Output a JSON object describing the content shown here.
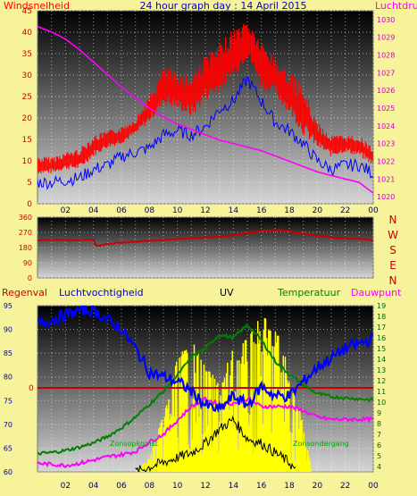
{
  "header": {
    "left_label": "Windsnelheid",
    "title": "24 hour graph day : 14 April 2015",
    "right_label": "Luchtdruk"
  },
  "colors": {
    "background": "#f6f39a",
    "wind": "#ff0000",
    "gust_avg": "#0000ff",
    "pressure": "#ff00ff",
    "direction": "#cc0000",
    "humidity": "#0000ff",
    "temperature": "#008000",
    "dewpoint": "#ff00ff",
    "uv": "#ffff00",
    "solar": "#000000",
    "rain_line": "#cc0000"
  },
  "chart_data": [
    {
      "type": "line",
      "title": "24 hour graph day : 14 April 2015",
      "xlabel": "",
      "ylabel_left": "Windsnelheid",
      "ylabel_right": "Luchtdruk",
      "x_ticks": [
        "02",
        "04",
        "06",
        "08",
        "10",
        "12",
        "14",
        "16",
        "18",
        "20",
        "22",
        "00"
      ],
      "y_ticks_left": [
        0,
        5,
        10,
        15,
        20,
        25,
        30,
        35,
        40,
        45
      ],
      "y_ticks_right": [
        1020,
        1021,
        1022,
        1023,
        1024,
        1025,
        1026,
        1027,
        1028,
        1029,
        1030
      ],
      "ylim_left": [
        0,
        45
      ],
      "ylim_right": [
        1019.6,
        1030.5
      ],
      "series": [
        {
          "axis": "left",
          "style": "band",
          "hours": [
            0,
            1,
            2,
            3,
            4,
            5,
            6,
            7,
            8,
            9,
            10,
            11,
            12,
            13,
            14,
            15,
            16,
            17,
            18,
            19,
            20,
            21,
            22,
            23,
            24
          ],
          "low": [
            7,
            7,
            8,
            8,
            11,
            13,
            14,
            16,
            19,
            23,
            22,
            20,
            24,
            26,
            29,
            34,
            27,
            25,
            21,
            16,
            13,
            11,
            12,
            11,
            9
          ],
          "high": [
            11,
            11,
            12,
            13,
            16,
            17,
            18,
            20,
            25,
            32,
            31,
            30,
            35,
            37,
            41,
            43,
            38,
            34,
            31,
            27,
            19,
            16,
            16,
            16,
            13
          ]
        },
        {
          "axis": "left",
          "hours": [
            0,
            1,
            2,
            3,
            4,
            5,
            6,
            7,
            8,
            9,
            10,
            11,
            12,
            13,
            14,
            15,
            16,
            17,
            18,
            19,
            20,
            21,
            22,
            23,
            24
          ],
          "values": [
            5,
            5,
            5.5,
            6,
            8,
            9,
            11,
            12,
            13,
            16,
            17,
            16,
            18,
            22,
            24,
            29,
            24,
            19,
            17,
            14,
            10,
            8,
            9,
            9,
            7
          ]
        },
        {
          "axis": "right",
          "hours": [
            0,
            1,
            2,
            3,
            4,
            5,
            6,
            7,
            8,
            9,
            10,
            11,
            12,
            13,
            14,
            15,
            16,
            17,
            18,
            19,
            20,
            21,
            22,
            23,
            24
          ],
          "values": [
            1029.6,
            1029.3,
            1028.9,
            1028.3,
            1027.6,
            1026.9,
            1026.2,
            1025.6,
            1025.0,
            1024.5,
            1024.1,
            1023.8,
            1023.5,
            1023.2,
            1023.0,
            1022.8,
            1022.6,
            1022.3,
            1022.0,
            1021.7,
            1021.4,
            1021.2,
            1021.0,
            1020.8,
            1020.2
          ]
        }
      ]
    },
    {
      "type": "line",
      "title": "",
      "y_ticks": [
        0,
        90,
        180,
        270,
        360
      ],
      "ylim": [
        0,
        360
      ],
      "compass_labels": [
        "N",
        "W",
        "S",
        "E",
        "N"
      ],
      "series": [
        {
          "hours": [
            0,
            1,
            2,
            3,
            4,
            4.2,
            5,
            6,
            7,
            8,
            9,
            10,
            11,
            12,
            13,
            14,
            15,
            16,
            17,
            18,
            19,
            20,
            21,
            22,
            23,
            24
          ],
          "values": [
            225,
            225,
            225,
            225,
            225,
            190,
            200,
            210,
            215,
            220,
            225,
            230,
            235,
            240,
            245,
            255,
            265,
            278,
            285,
            275,
            262,
            250,
            240,
            235,
            230,
            225
          ]
        }
      ]
    },
    {
      "type": "line",
      "title": "UV",
      "legend": [
        "Regenval",
        "Luchtvochtigheid",
        "UV",
        "Temperatuur",
        "Dauwpunt"
      ],
      "x_ticks": [
        "02",
        "04",
        "06",
        "08",
        "10",
        "12",
        "14",
        "16",
        "18",
        "20",
        "22",
        "00"
      ],
      "y_ticks_left": [
        60,
        65,
        70,
        75,
        80,
        85,
        90,
        95
      ],
      "ylim_left": [
        60,
        95
      ],
      "y_ticks_right": [
        4,
        5,
        6,
        7,
        8,
        9,
        10,
        11,
        12,
        13,
        14,
        15,
        16,
        17,
        18,
        19
      ],
      "ylim_right": [
        3.5,
        19
      ],
      "rain_label": "0",
      "annotations": [
        "Zonsopkomst",
        "Zonsondergang"
      ],
      "series": [
        {
          "name": "Luchtvochtigheid",
          "axis": "left",
          "hours": [
            0,
            1,
            2,
            3,
            4,
            5,
            6,
            7,
            8,
            9,
            10,
            11,
            12,
            13,
            14,
            15,
            16,
            17,
            18,
            19,
            20,
            21,
            22,
            23,
            24
          ],
          "values": [
            91,
            92,
            93,
            94,
            94,
            92,
            90,
            86,
            81,
            80,
            79,
            77,
            74,
            73,
            76,
            74,
            78,
            76,
            76,
            79,
            82,
            84,
            86,
            87,
            88
          ]
        },
        {
          "name": "Temperatuur",
          "axis": "right",
          "hours": [
            0,
            1,
            2,
            3,
            4,
            5,
            6,
            7,
            8,
            9,
            10,
            11,
            12,
            13,
            14,
            15,
            16,
            17,
            18,
            19,
            20,
            21,
            22,
            23,
            24
          ],
          "values": [
            5.2,
            5.3,
            5.5,
            5.8,
            6.2,
            6.8,
            7.6,
            8.6,
            9.8,
            11,
            12.5,
            14.2,
            15.0,
            16.3,
            16.0,
            17.2,
            15.8,
            13.8,
            12.6,
            11.6,
            10.8,
            10.5,
            10.4,
            10.3,
            10.2
          ]
        },
        {
          "name": "Dauwpunt",
          "axis": "right",
          "hours": [
            0,
            1,
            2,
            3,
            4,
            5,
            6,
            7,
            8,
            9,
            10,
            11,
            12,
            13,
            14,
            15,
            16,
            17,
            18,
            19,
            20,
            21,
            22,
            23,
            24
          ],
          "values": [
            4.3,
            4.2,
            4.1,
            4.3,
            4.6,
            4.9,
            5.1,
            5.4,
            6.3,
            7.0,
            8.3,
            9.6,
            10.3,
            9.8,
            9.9,
            10.3,
            9.6,
            9.6,
            9.6,
            9.2,
            8.6,
            8.4,
            8.4,
            8.4,
            8.4
          ]
        },
        {
          "name": "Solar",
          "axis": "left",
          "hours": [
            7,
            8,
            9,
            10,
            11,
            12,
            13,
            14,
            15,
            16,
            17,
            18,
            18.5
          ],
          "values": [
            60,
            61,
            62,
            63,
            64,
            66,
            69,
            71,
            67,
            66,
            64,
            62,
            60
          ]
        },
        {
          "name": "UV",
          "axis": "left",
          "style": "area",
          "hours": [
            7,
            8,
            9,
            10,
            11,
            12,
            13,
            14,
            15,
            16,
            17,
            18,
            19,
            19.6
          ],
          "values": [
            60,
            63,
            72,
            84,
            88,
            82,
            79,
            86,
            88,
            93,
            91,
            82,
            70,
            60
          ]
        }
      ]
    }
  ]
}
